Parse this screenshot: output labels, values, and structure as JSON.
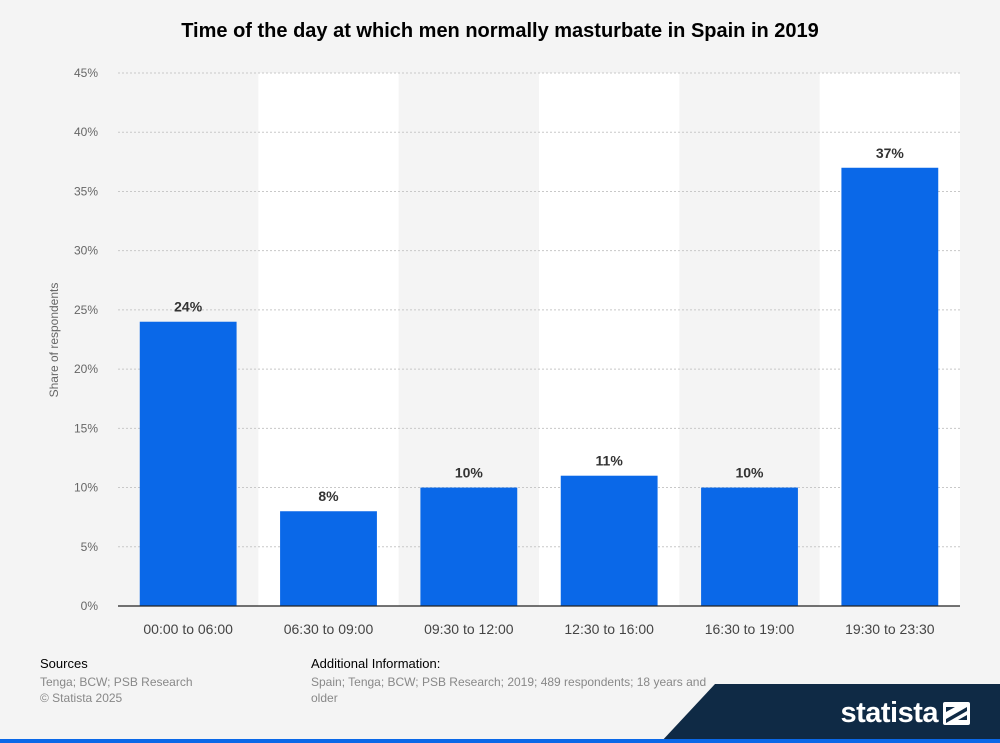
{
  "chart_data": {
    "type": "bar",
    "title": "Time of the day at which men normally masturbate in Spain in 2019",
    "xlabel": "",
    "ylabel": "Share of respondents",
    "categories": [
      "00:00 to 06:00",
      "06:30 to 09:00",
      "09:30 to 12:00",
      "12:30 to 16:00",
      "16:30 to 19:00",
      "19:30 to 23:30"
    ],
    "values": [
      24,
      8,
      10,
      11,
      10,
      37
    ],
    "value_labels": [
      "24%",
      "8%",
      "10%",
      "11%",
      "10%",
      "37%"
    ],
    "ylim": [
      0,
      45
    ],
    "yticks": [
      0,
      5,
      10,
      15,
      20,
      25,
      30,
      35,
      40,
      45
    ],
    "ytick_labels": [
      "0%",
      "5%",
      "10%",
      "15%",
      "20%",
      "25%",
      "30%",
      "35%",
      "40%",
      "45%"
    ],
    "grid": true,
    "bar_color": "#0a68e8"
  },
  "footer": {
    "sources_header": "Sources",
    "sources_line1": "Tenga; BCW; PSB Research",
    "sources_line2": "© Statista 2025",
    "additional_header": "Additional Information:",
    "additional_text": "Spain; Tenga; BCW; PSB Research; 2019; 489 respondents; 18 years and older"
  },
  "brand": {
    "name": "statista",
    "dark_color": "#0f2a45",
    "accent_color": "#0a68e8"
  }
}
